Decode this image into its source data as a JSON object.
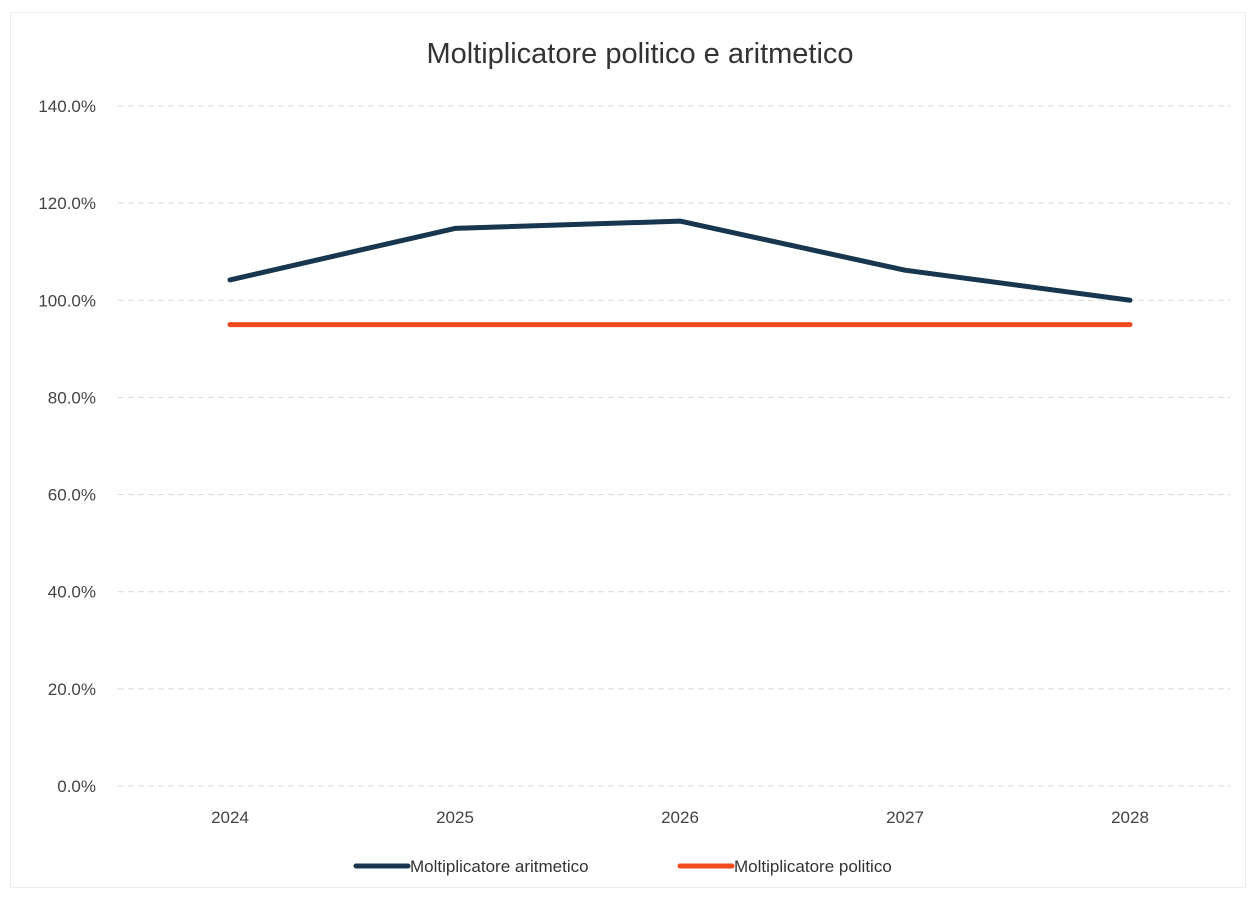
{
  "chart_data": {
    "type": "line",
    "title": "Moltiplicatore politico e aritmetico",
    "categories": [
      "2024",
      "2025",
      "2026",
      "2027",
      "2028"
    ],
    "ylim": [
      0,
      140
    ],
    "yticks": [
      0,
      20,
      40,
      60,
      80,
      100,
      120,
      140
    ],
    "ytick_labels": [
      "0.0%",
      "20.0%",
      "40.0%",
      "60.0%",
      "80.0%",
      "100.0%",
      "120.0%",
      "140.0%"
    ],
    "grid": true,
    "legend_position": "bottom",
    "series": [
      {
        "name": "Moltiplicatore aritmetico",
        "values": [
          104.2,
          114.8,
          116.3,
          106.2,
          100.0
        ],
        "color": "#17364f"
      },
      {
        "name": "Moltiplicatore politico",
        "values": [
          95.0,
          95.0,
          95.0,
          95.0,
          95.0
        ],
        "color": "#f04a1e"
      }
    ]
  }
}
